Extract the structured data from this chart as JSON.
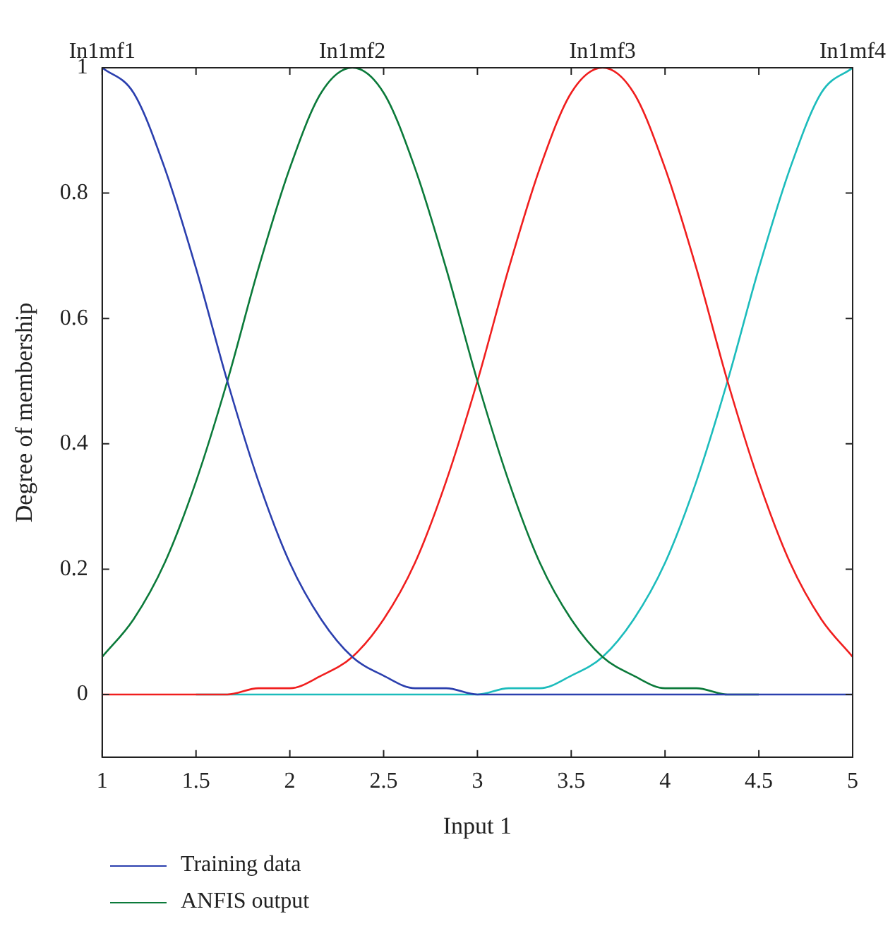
{
  "chart_data": {
    "type": "line",
    "xlabel": "Input 1",
    "ylabel": "Degree of membership",
    "x": [
      1,
      1.167,
      1.333,
      1.5,
      1.667,
      1.833,
      2,
      2.167,
      2.333,
      2.5,
      2.667,
      2.833,
      3,
      3.167,
      3.333,
      3.5,
      3.667,
      3.833,
      4,
      4.167,
      4.333,
      4.5,
      4.667,
      4.833,
      5
    ],
    "series": [
      {
        "name": "Training data",
        "color": "#2b3fae",
        "values": [
          1,
          0.96,
          0.84,
          0.68,
          0.5,
          0.34,
          0.21,
          0.12,
          0.06,
          0.03,
          0.01,
          0.01,
          0,
          0,
          0,
          0,
          0,
          0,
          0,
          0,
          0,
          0,
          0,
          0,
          0
        ]
      },
      {
        "name": "ANFIS output",
        "color": "#0b7a3a",
        "values": [
          0.06,
          0.12,
          0.21,
          0.34,
          0.5,
          0.68,
          0.84,
          0.96,
          1,
          0.96,
          0.84,
          0.68,
          0.5,
          0.34,
          0.21,
          0.12,
          0.06,
          0.03,
          0.01,
          0.01,
          0,
          0,
          null,
          null,
          null
        ]
      },
      {
        "color": "#f01e1e",
        "values": [
          0,
          0,
          0,
          0,
          0,
          0.01,
          0.01,
          0.03,
          0.06,
          0.12,
          0.21,
          0.34,
          0.5,
          0.68,
          0.84,
          0.96,
          1,
          0.96,
          0.84,
          0.68,
          0.5,
          0.34,
          0.21,
          0.12,
          0.06
        ]
      },
      {
        "color": "#1cbcbc",
        "values": [
          null,
          null,
          null,
          0,
          0,
          0,
          0,
          0,
          0,
          0,
          0,
          0,
          0,
          0.01,
          0.01,
          0.03,
          0.06,
          0.12,
          0.21,
          0.34,
          0.5,
          0.68,
          0.84,
          0.96,
          1
        ]
      }
    ],
    "xlim": [
      1,
      5
    ],
    "xticks": [
      1,
      1.5,
      2,
      2.5,
      3,
      3.5,
      4,
      4.5,
      5
    ],
    "ylim": [
      -0.1,
      1
    ],
    "yticks": [
      0,
      0.2,
      0.4,
      0.6,
      0.8,
      1
    ],
    "annotations": [
      {
        "text": "In1mf1",
        "x": 1,
        "y": 1
      },
      {
        "text": "In1mf2",
        "x": 2.333,
        "y": 1
      },
      {
        "text": "In1mf3",
        "x": 3.667,
        "y": 1
      },
      {
        "text": "In1mf4",
        "x": 5,
        "y": 1
      }
    ],
    "legend": "bottom",
    "grid": false,
    "marker": "none",
    "line_style": "solid"
  }
}
